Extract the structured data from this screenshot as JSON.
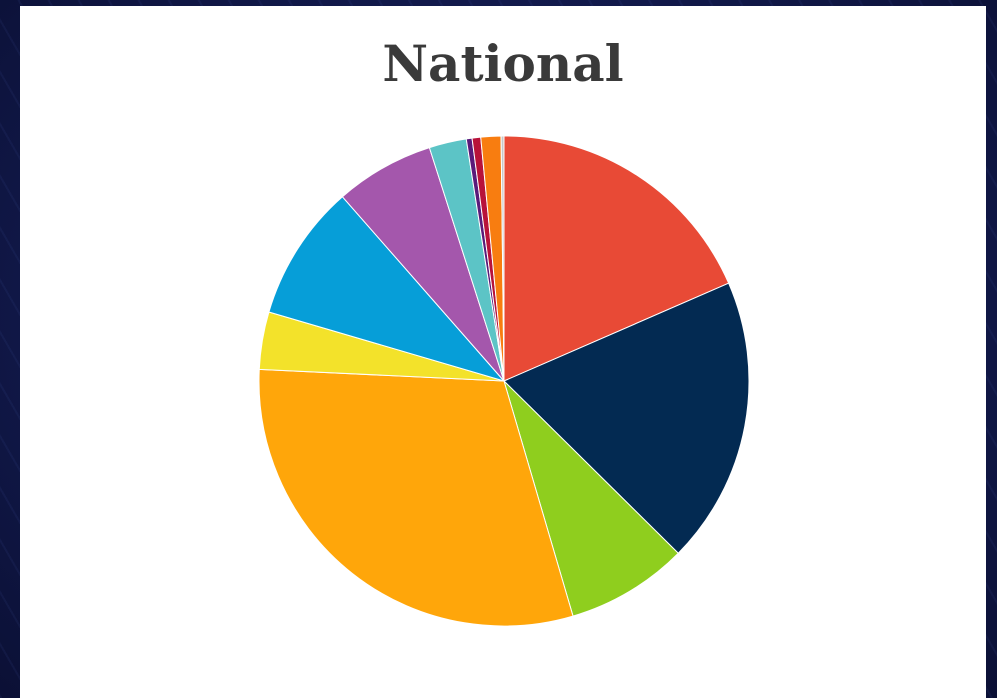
{
  "chart_data": {
    "type": "pie",
    "title": "National",
    "slices": [
      {
        "value": 19.5,
        "color": "#e84a36"
      },
      {
        "value": 20.0,
        "color": "#032a52"
      },
      {
        "value": 8.5,
        "color": "#8fce1e"
      },
      {
        "value": 32.0,
        "color": "#ffa60a"
      },
      {
        "value": 4.0,
        "color": "#f3e22a"
      },
      {
        "value": 9.5,
        "color": "#069ed8"
      },
      {
        "value": 6.9,
        "color": "#a457ac"
      },
      {
        "value": 2.6,
        "color": "#5cc4c6"
      },
      {
        "value": 0.4,
        "color": "#5a1a7a"
      },
      {
        "value": 0.6,
        "color": "#b8123a"
      },
      {
        "value": 1.4,
        "color": "#f87d10"
      },
      {
        "value": 0.2,
        "color": "#c8c8c8"
      }
    ]
  }
}
